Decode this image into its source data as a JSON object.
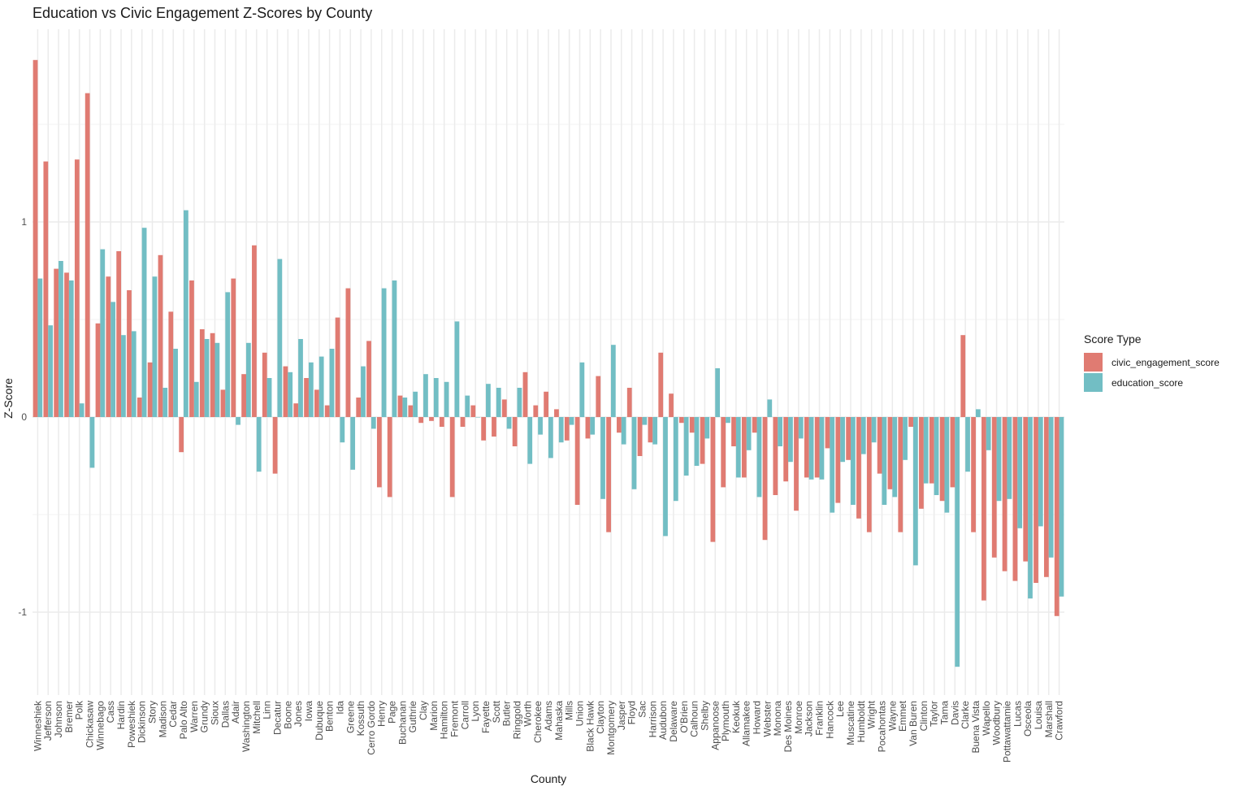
{
  "chart_data": {
    "type": "bar",
    "title": "Education vs Civic Engagement Z-Scores by County",
    "xlabel": "County",
    "ylabel": "Z-Score",
    "ylim": [
      -1.4,
      1.9
    ],
    "yticks": [
      -1,
      0,
      1
    ],
    "grid": true,
    "legend": {
      "title": "Score Type",
      "position": "right"
    },
    "categories": [
      "Winneshiek",
      "Jefferson",
      "Johnson",
      "Bremer",
      "Polk",
      "Chickasaw",
      "Winnebago",
      "Cass",
      "Hardin",
      "Poweshiek",
      "Dickinson",
      "Story",
      "Madison",
      "Cedar",
      "Palo Alto",
      "Warren",
      "Grundy",
      "Sioux",
      "Dallas",
      "Adair",
      "Washington",
      "Mitchell",
      "Linn",
      "Decatur",
      "Boone",
      "Jones",
      "Iowa",
      "Dubuque",
      "Benton",
      "Ida",
      "Greene",
      "Kossuth",
      "Cerro Gordo",
      "Henry",
      "Page",
      "Buchanan",
      "Guthrie",
      "Clay",
      "Marion",
      "Hamilton",
      "Fremont",
      "Carroll",
      "Lyon",
      "Fayette",
      "Scott",
      "Butler",
      "Ringgold",
      "Worth",
      "Cherokee",
      "Adams",
      "Mahaska",
      "Mills",
      "Union",
      "Black Hawk",
      "Clayton",
      "Montgomery",
      "Jasper",
      "Floyd",
      "Sac",
      "Harrison",
      "Audubon",
      "Delaware",
      "O'Brien",
      "Calhoun",
      "Shelby",
      "Appanoose",
      "Plymouth",
      "Keokuk",
      "Allamakee",
      "Howard",
      "Webster",
      "Monona",
      "Des Moines",
      "Monroe",
      "Jackson",
      "Franklin",
      "Hancock",
      "Lee",
      "Muscatine",
      "Humboldt",
      "Wright",
      "Pocahontas",
      "Wayne",
      "Emmet",
      "Van Buren",
      "Clinton",
      "Taylor",
      "Tama",
      "Davis",
      "Clarke",
      "Buena Vista",
      "Wapello",
      "Woodbury",
      "Pottawattamie",
      "Lucas",
      "Osceola",
      "Louisa",
      "Marshall",
      "Crawford"
    ],
    "series": [
      {
        "name": "civic_engagement_score",
        "color": "#E07B72",
        "values": [
          1.83,
          1.31,
          0.76,
          0.74,
          1.32,
          1.66,
          0.48,
          0.72,
          0.85,
          0.65,
          0.1,
          0.28,
          0.83,
          0.54,
          -0.18,
          0.7,
          0.45,
          0.43,
          0.14,
          0.71,
          0.22,
          0.88,
          0.33,
          -0.29,
          0.26,
          0.07,
          0.2,
          0.14,
          0.06,
          0.51,
          0.66,
          0.1,
          0.39,
          -0.36,
          -0.41,
          0.11,
          0.06,
          -0.03,
          -0.02,
          -0.05,
          -0.41,
          -0.05,
          0.06,
          -0.12,
          -0.1,
          0.09,
          -0.15,
          0.23,
          0.06,
          0.13,
          0.04,
          -0.12,
          -0.45,
          -0.11,
          0.21,
          -0.59,
          -0.08,
          0.15,
          -0.2,
          -0.13,
          0.33,
          0.12,
          -0.03,
          -0.08,
          -0.24,
          -0.64,
          -0.36,
          -0.15,
          -0.31,
          -0.08,
          -0.63,
          -0.4,
          -0.33,
          -0.48,
          -0.31,
          -0.31,
          -0.16,
          -0.44,
          -0.22,
          -0.52,
          -0.59,
          -0.29,
          -0.37,
          -0.59,
          -0.05,
          -0.47,
          -0.34,
          -0.43,
          -0.36,
          0.42,
          -0.59,
          -0.94,
          -0.72,
          -0.79,
          -0.84,
          -0.74,
          -0.85,
          -0.82,
          -1.02
        ]
      },
      {
        "name": "education_score",
        "color": "#72BEC4",
        "values": [
          0.71,
          0.47,
          0.8,
          0.7,
          0.07,
          -0.26,
          0.86,
          0.59,
          0.42,
          0.44,
          0.97,
          0.72,
          0.15,
          0.35,
          1.06,
          0.18,
          0.4,
          0.38,
          0.64,
          -0.04,
          0.38,
          -0.28,
          0.2,
          0.81,
          0.23,
          0.4,
          0.28,
          0.31,
          0.35,
          -0.13,
          -0.27,
          0.26,
          -0.06,
          0.66,
          0.7,
          0.1,
          0.13,
          0.22,
          0.2,
          0.18,
          0.49,
          0.11,
          0.0,
          0.17,
          0.15,
          -0.06,
          0.15,
          -0.24,
          -0.09,
          -0.21,
          -0.13,
          -0.04,
          0.28,
          -0.09,
          -0.42,
          0.37,
          -0.14,
          -0.37,
          -0.04,
          -0.14,
          -0.61,
          -0.43,
          -0.3,
          -0.25,
          -0.11,
          0.25,
          -0.03,
          -0.31,
          -0.17,
          -0.41,
          0.09,
          -0.15,
          -0.23,
          -0.11,
          -0.32,
          -0.32,
          -0.49,
          -0.23,
          -0.45,
          -0.19,
          -0.13,
          -0.45,
          -0.41,
          -0.22,
          -0.76,
          -0.34,
          -0.4,
          -0.49,
          -1.28,
          -0.28,
          0.04,
          -0.17,
          -0.43,
          -0.42,
          -0.57,
          -0.93,
          -0.56,
          -0.72,
          -0.92
        ]
      }
    ]
  }
}
